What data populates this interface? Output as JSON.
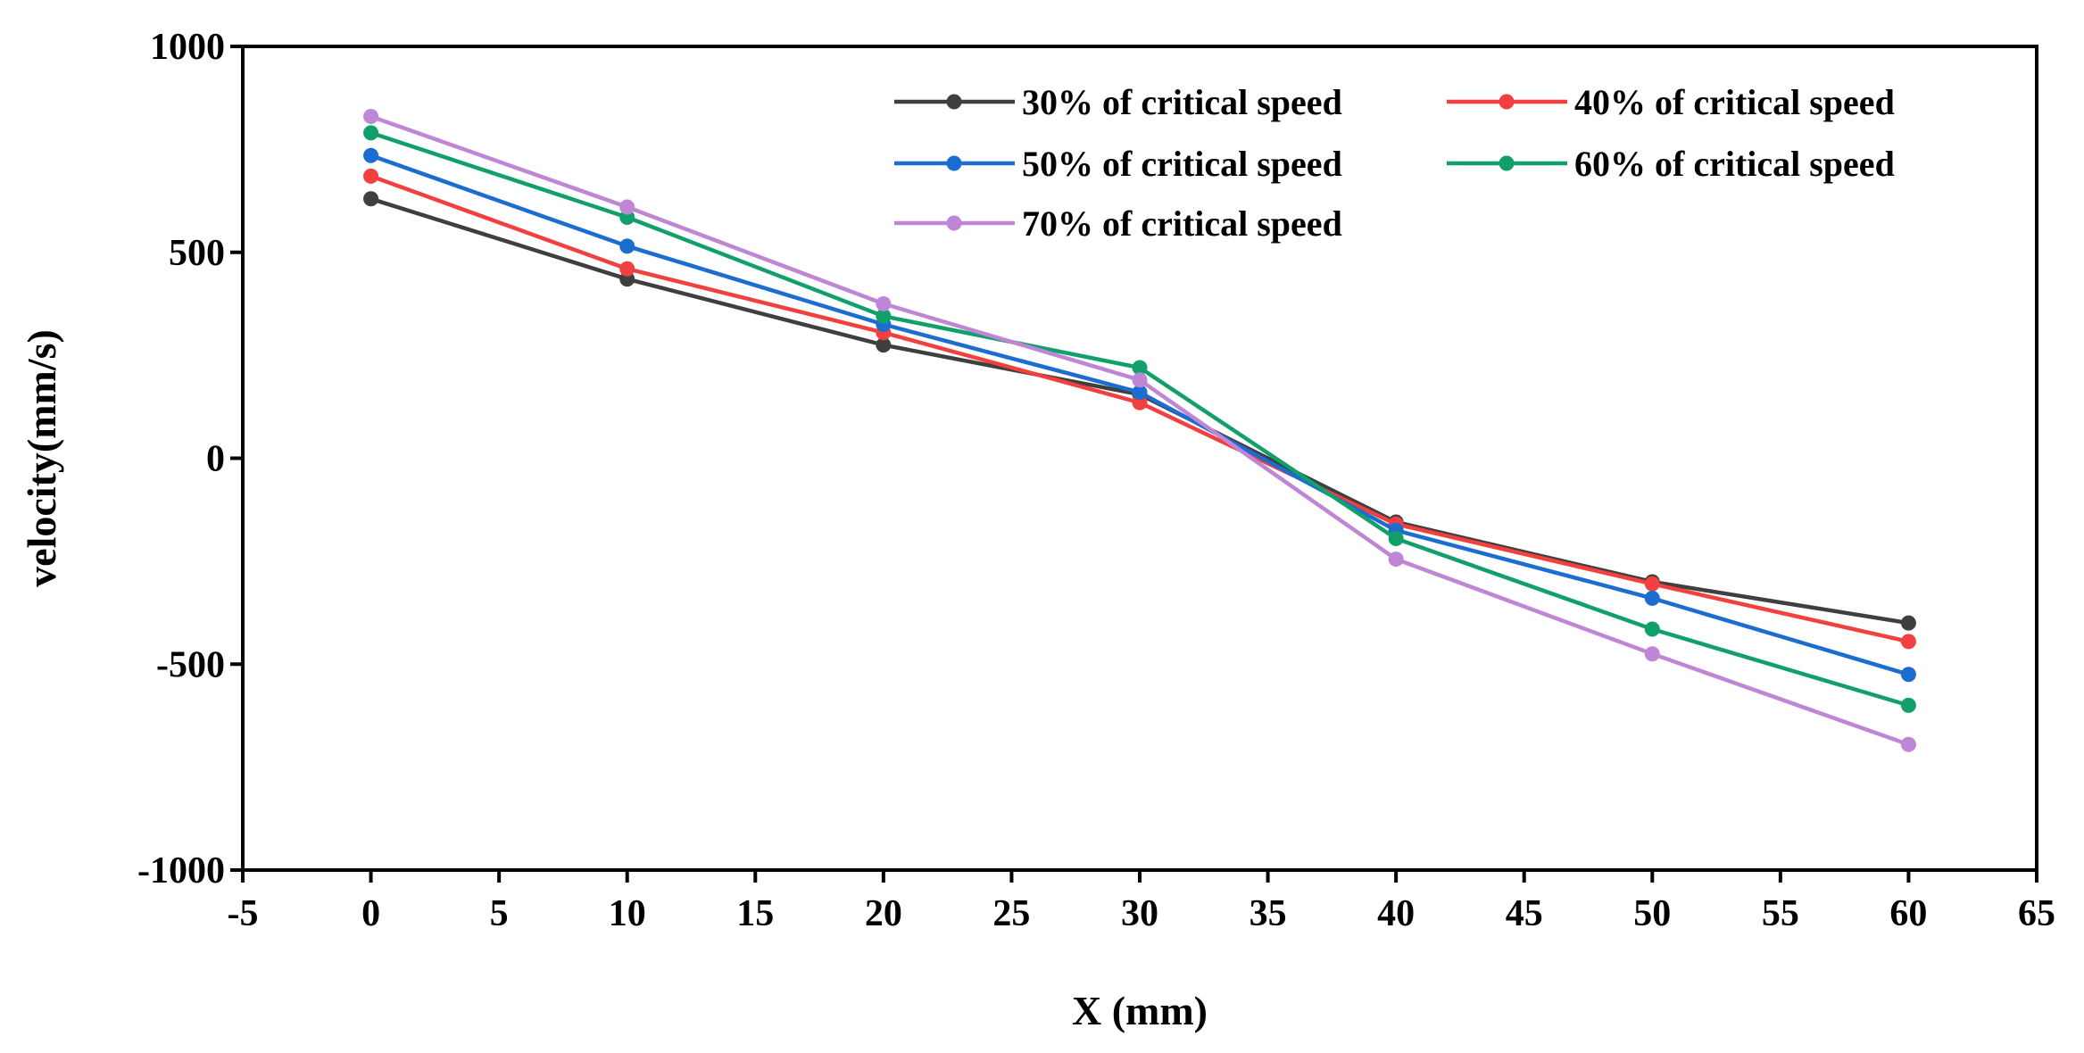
{
  "chart_data": {
    "type": "line",
    "title": "",
    "xlabel": "X (mm)",
    "ylabel": "velocity(mm/s)",
    "xlim": [
      -5,
      65
    ],
    "ylim": [
      -1000,
      1000
    ],
    "xticks": [
      -5,
      0,
      5,
      10,
      15,
      20,
      25,
      30,
      35,
      40,
      45,
      50,
      55,
      60,
      65
    ],
    "yticks": [
      -1000,
      -500,
      0,
      500,
      1000
    ],
    "grid": false,
    "legend_position": "top-right",
    "x": [
      0,
      10,
      20,
      30,
      40,
      50,
      60
    ],
    "series": [
      {
        "name": "30% of critical speed",
        "color": "#3f3f3f",
        "values": [
          630,
          435,
          275,
          155,
          -155,
          -300,
          -400
        ]
      },
      {
        "name": "40% of critical speed",
        "color": "#f23f3f",
        "values": [
          685,
          460,
          305,
          135,
          -160,
          -305,
          -445
        ]
      },
      {
        "name": "50% of critical speed",
        "color": "#1c6dd0",
        "values": [
          735,
          515,
          325,
          160,
          -175,
          -340,
          -525
        ]
      },
      {
        "name": "60% of critical speed",
        "color": "#12a06a",
        "values": [
          790,
          585,
          345,
          220,
          -195,
          -415,
          -600
        ]
      },
      {
        "name": "70% of critical speed",
        "color": "#bf86d6",
        "values": [
          830,
          610,
          375,
          190,
          -245,
          -475,
          -695
        ]
      }
    ]
  }
}
